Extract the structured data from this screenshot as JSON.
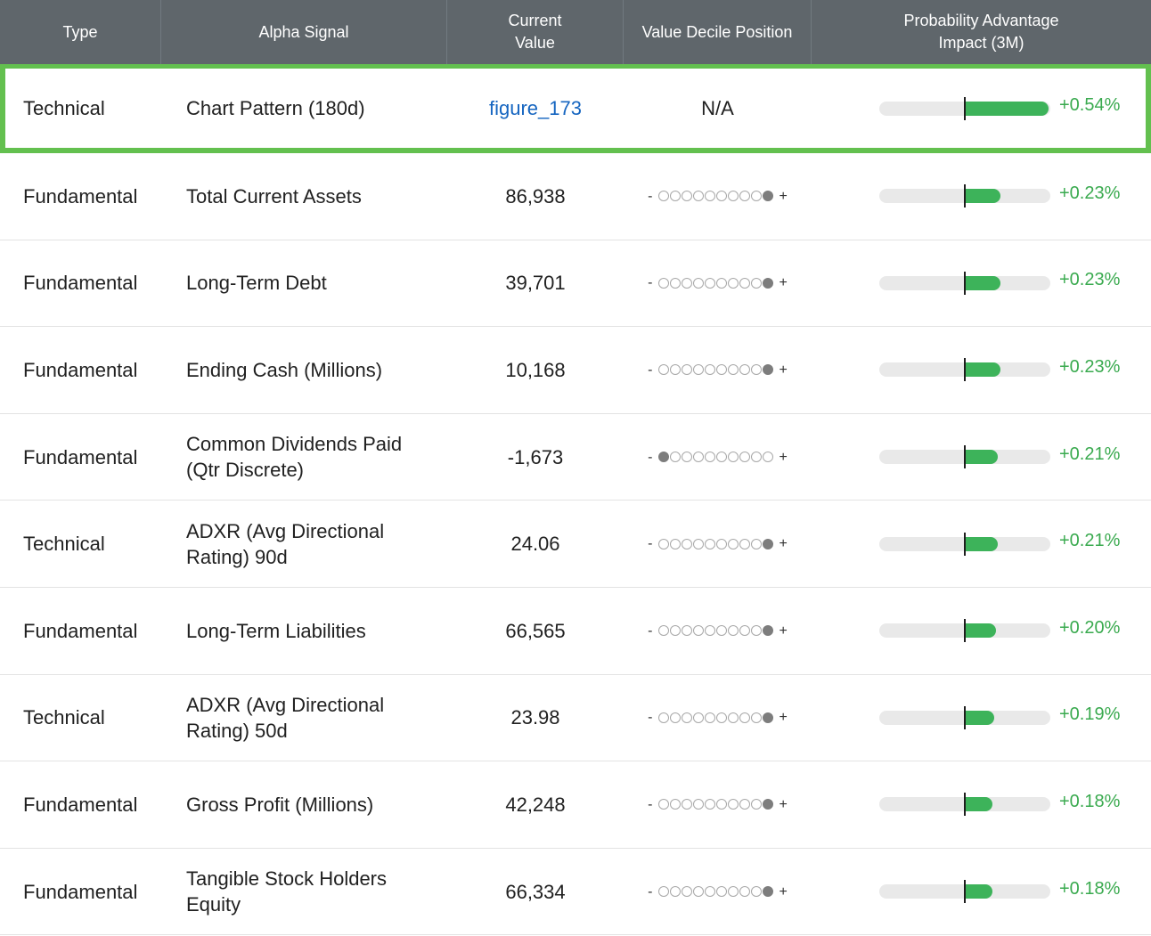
{
  "columns": {
    "type": "Type",
    "alpha": "Alpha Signal",
    "current_line1": "Current",
    "current_line2": "Value",
    "decile": "Value Decile Position",
    "prob_line1": "Probability Advantage",
    "prob_line2": "Impact (3M)"
  },
  "decile_minus": "-",
  "decile_plus": "+",
  "colors": {
    "header_bg": "#5f666b",
    "highlight_border": "#63c04f",
    "positive": "#3aaa4f",
    "link": "#1565c0"
  },
  "rows": [
    {
      "type": "Technical",
      "signal": "Chart Pattern (180d)",
      "value": "figure_173",
      "value_is_link": true,
      "decile_text": "N/A",
      "decile": null,
      "impact": "+0.54%",
      "impact_value": 0.54,
      "highlighted": true
    },
    {
      "type": "Fundamental",
      "signal": "Total Current Assets",
      "value": "86,938",
      "decile": 10,
      "impact": "+0.23%",
      "impact_value": 0.23
    },
    {
      "type": "Fundamental",
      "signal": "Long-Term Debt",
      "value": "39,701",
      "decile": 10,
      "impact": "+0.23%",
      "impact_value": 0.23
    },
    {
      "type": "Fundamental",
      "signal": "Ending Cash (Millions)",
      "value": "10,168",
      "decile": 10,
      "impact": "+0.23%",
      "impact_value": 0.23
    },
    {
      "type": "Fundamental",
      "signal": "Common Dividends Paid (Qtr Discrete)",
      "value": "-1,673",
      "decile": 1,
      "impact": "+0.21%",
      "impact_value": 0.21
    },
    {
      "type": "Technical",
      "signal": "ADXR (Avg Directional Rating) 90d",
      "value": "24.06",
      "decile": 10,
      "impact": "+0.21%",
      "impact_value": 0.21
    },
    {
      "type": "Fundamental",
      "signal": "Long-Term Liabilities",
      "value": "66,565",
      "decile": 10,
      "impact": "+0.20%",
      "impact_value": 0.2
    },
    {
      "type": "Technical",
      "signal": "ADXR (Avg Directional Rating) 50d",
      "value": "23.98",
      "decile": 10,
      "impact": "+0.19%",
      "impact_value": 0.19
    },
    {
      "type": "Fundamental",
      "signal": "Gross Profit (Millions)",
      "value": "42,248",
      "decile": 10,
      "impact": "+0.18%",
      "impact_value": 0.18
    },
    {
      "type": "Fundamental",
      "signal": "Tangible Stock Holders Equity",
      "value": "66,334",
      "decile": 10,
      "impact": "+0.18%",
      "impact_value": 0.18
    }
  ]
}
